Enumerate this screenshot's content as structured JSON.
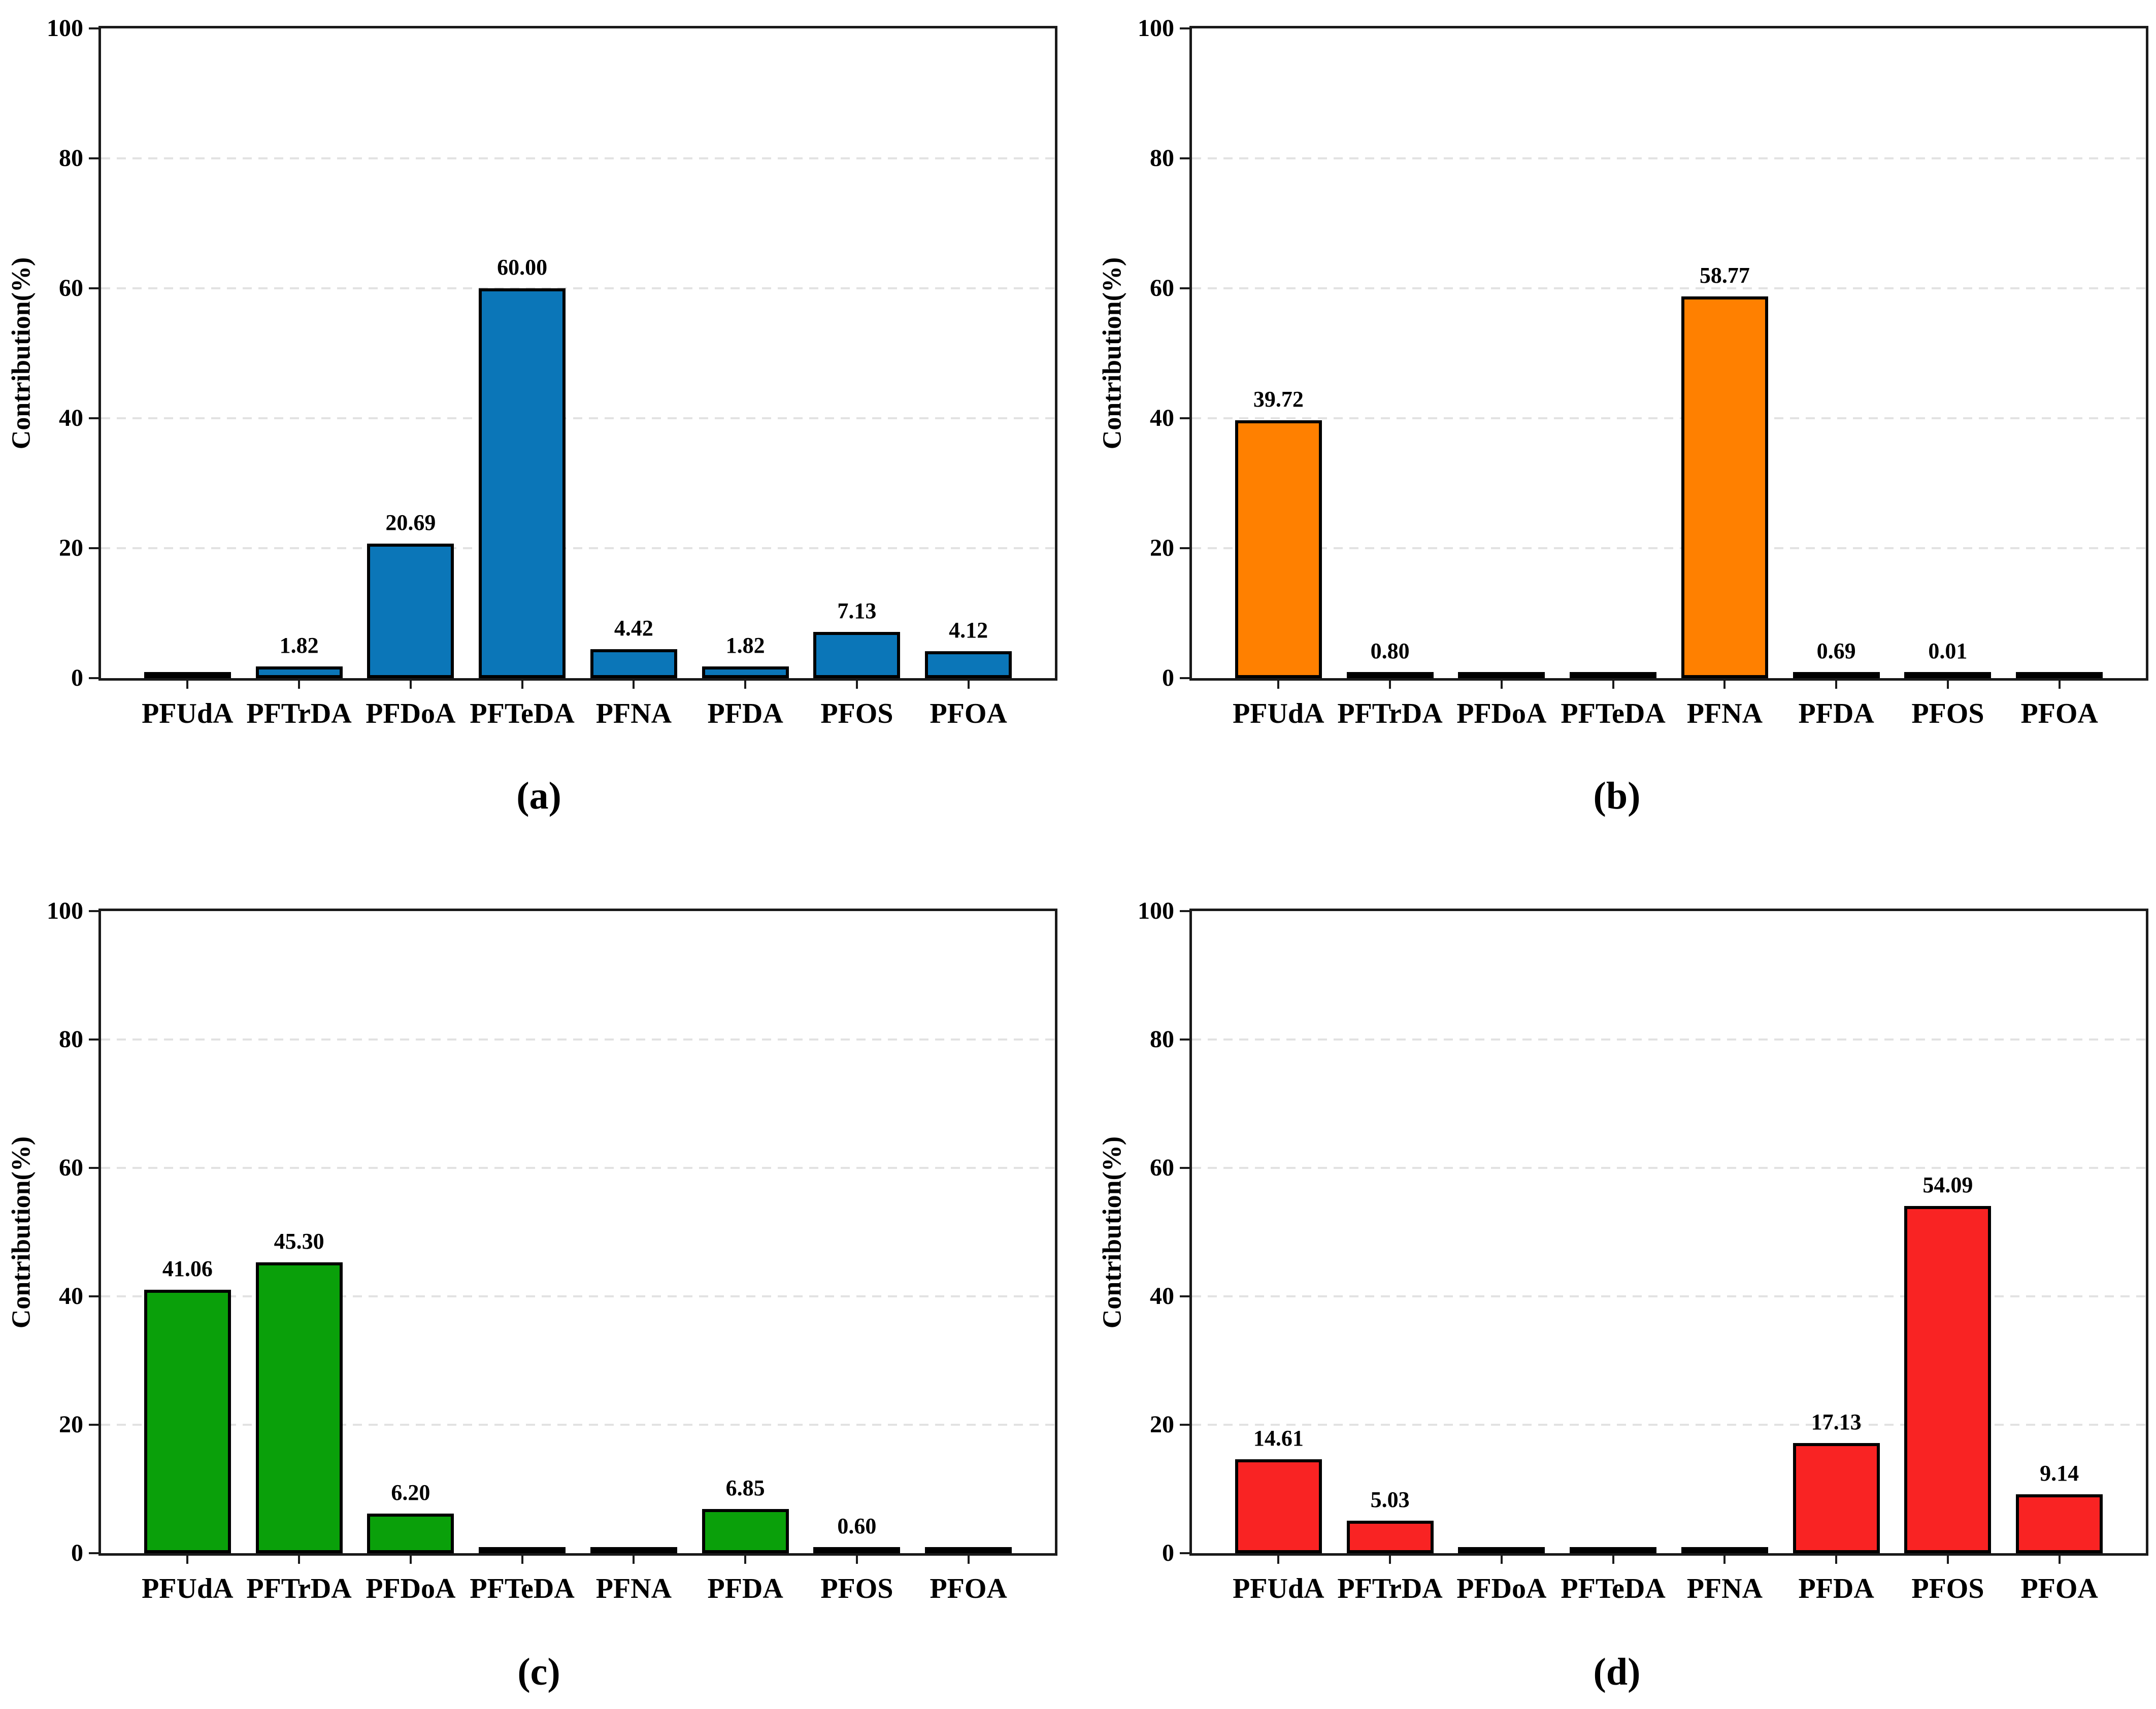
{
  "figure": {
    "background": "#ffffff",
    "text_color": "#000000",
    "spine_color": "#1a1a1a",
    "gridline_color": "#e2e2e2",
    "gridline_style": "dashed"
  },
  "chart_data": [
    {
      "type": "bar",
      "panel": "a",
      "caption": "(a)",
      "title": "",
      "xlabel": "",
      "ylabel": "Contribution(%)",
      "ylim": [
        0,
        100
      ],
      "yticks": [
        0,
        20,
        40,
        60,
        80,
        100
      ],
      "gridlines_at": [
        20,
        40,
        60,
        80
      ],
      "legend": "none",
      "bar_color": "#0b76b8",
      "bar_edge_color": "#000000",
      "categories": [
        "PFUdA",
        "PFTrDA",
        "PFDoA",
        "PFTeDA",
        "PFNA",
        "PFDA",
        "PFOS",
        "PFOA"
      ],
      "values": [
        0.1,
        1.82,
        20.69,
        60.0,
        4.42,
        1.82,
        7.13,
        4.12
      ],
      "value_labels": [
        "",
        "1.82",
        "20.69",
        "60.00",
        "4.42",
        "1.82",
        "7.13",
        "4.12"
      ]
    },
    {
      "type": "bar",
      "panel": "b",
      "caption": "(b)",
      "title": "",
      "xlabel": "",
      "ylabel": "Contribution(%)",
      "ylim": [
        0,
        100
      ],
      "yticks": [
        0,
        20,
        40,
        60,
        80,
        100
      ],
      "gridlines_at": [
        20,
        40,
        60,
        80
      ],
      "legend": "none",
      "bar_color": "#ff8000",
      "bar_edge_color": "#000000",
      "categories": [
        "PFUdA",
        "PFTrDA",
        "PFDoA",
        "PFTeDA",
        "PFNA",
        "PFDA",
        "PFOS",
        "PFOA"
      ],
      "values": [
        39.72,
        0.8,
        0.1,
        0.1,
        58.77,
        0.69,
        0.01,
        0.1
      ],
      "value_labels": [
        "39.72",
        "0.80",
        "",
        "",
        "58.77",
        "0.69",
        "0.01",
        ""
      ]
    },
    {
      "type": "bar",
      "panel": "c",
      "caption": "(c)",
      "title": "",
      "xlabel": "",
      "ylabel": "Contribution(%)",
      "ylim": [
        0,
        100
      ],
      "yticks": [
        0,
        20,
        40,
        60,
        80,
        100
      ],
      "gridlines_at": [
        20,
        40,
        60,
        80
      ],
      "legend": "none",
      "bar_color": "#0aa00a",
      "bar_edge_color": "#000000",
      "categories": [
        "PFUdA",
        "PFTrDA",
        "PFDoA",
        "PFTeDA",
        "PFNA",
        "PFDA",
        "PFOS",
        "PFOA"
      ],
      "values": [
        41.06,
        45.3,
        6.2,
        0.1,
        0.1,
        6.85,
        0.6,
        0.1
      ],
      "value_labels": [
        "41.06",
        "45.30",
        "6.20",
        "",
        "",
        "6.85",
        "0.60",
        ""
      ]
    },
    {
      "type": "bar",
      "panel": "d",
      "caption": "(d)",
      "title": "",
      "xlabel": "",
      "ylabel": "Contribution(%)",
      "ylim": [
        0,
        100
      ],
      "yticks": [
        0,
        20,
        40,
        60,
        80,
        100
      ],
      "gridlines_at": [
        20,
        40,
        60,
        80
      ],
      "legend": "none",
      "bar_color": "#f92323",
      "bar_edge_color": "#000000",
      "categories": [
        "PFUdA",
        "PFTrDA",
        "PFDoA",
        "PFTeDA",
        "PFNA",
        "PFDA",
        "PFOS",
        "PFOA"
      ],
      "values": [
        14.61,
        5.03,
        0.1,
        0.1,
        0.1,
        17.13,
        54.09,
        9.14
      ],
      "value_labels": [
        "14.61",
        "5.03",
        "",
        "",
        "",
        "17.13",
        "54.09",
        "9.14"
      ]
    }
  ]
}
